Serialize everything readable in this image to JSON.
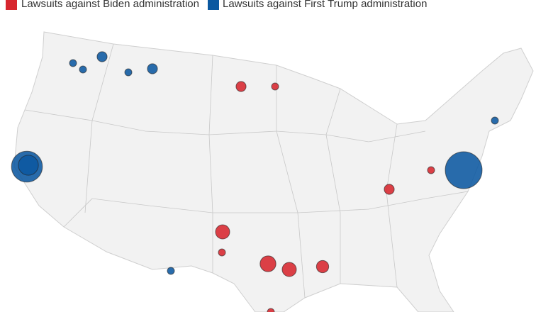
{
  "series": [
    {
      "name": "Lawsuits against Biden administration",
      "color": "#d7262e",
      "values": [
        2,
        1,
        4,
        1,
        5,
        4,
        3,
        1,
        2,
        1
      ]
    },
    {
      "name": "Lawsuits against First Trump administration",
      "color": "#0b58a0",
      "values": [
        1,
        1,
        2,
        1,
        2,
        19,
        8,
        27,
        1,
        1
      ]
    }
  ]
}
